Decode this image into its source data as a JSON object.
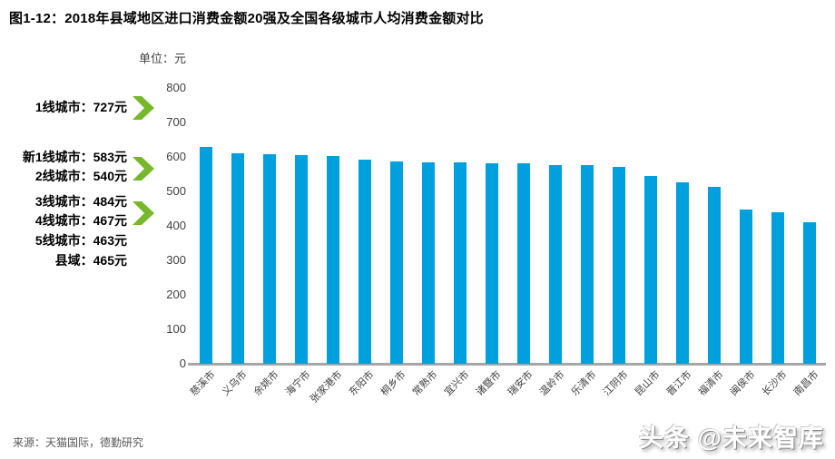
{
  "title": "图1-12：2018年县域地区进口消费金额20强及全国各级城市人均消费金额对比",
  "unit_label": "单位：元",
  "annotations": [
    "1线城市：727元",
    "新1线城市：583元",
    "2线城市：540元",
    "3线城市：484元",
    "4线城市：467元",
    "5线城市：463元",
    "县域：465元"
  ],
  "source": "来源：天猫国际，德勤研究",
  "watermark": "头条 @未来智库",
  "colors": {
    "bar": "#00a0de",
    "arrow_green": "#76b82a",
    "axis": "#a6a6a6"
  },
  "chart_data": {
    "type": "bar",
    "title": "2018年县域地区进口消费金额20强及全国各级城市人均消费金额对比",
    "unit": "元",
    "categories": [
      "慈溪市",
      "义乌市",
      "余姚市",
      "海宁市",
      "张家港市",
      "东阳市",
      "桐乡市",
      "常熟市",
      "宜兴市",
      "诸暨市",
      "瑞安市",
      "温岭市",
      "乐清市",
      "江阴市",
      "昆山市",
      "晋江市",
      "福清市",
      "闽侯市",
      "长沙市",
      "南昌市"
    ],
    "values": [
      628,
      610,
      607,
      604,
      602,
      593,
      588,
      585,
      583,
      582,
      581,
      576,
      577,
      571,
      546,
      526,
      512,
      448,
      440,
      410
    ],
    "ylim": [
      0,
      800
    ],
    "yticks": [
      0,
      100,
      200,
      300,
      400,
      500,
      600,
      700,
      800
    ],
    "grid": false,
    "legend": false,
    "city_tier_averages": [
      {
        "label": "1线城市",
        "value": 727
      },
      {
        "label": "新1线城市",
        "value": 583
      },
      {
        "label": "2线城市",
        "value": 540
      },
      {
        "label": "3线城市",
        "value": 484
      },
      {
        "label": "4线城市",
        "value": 467
      },
      {
        "label": "5线城市",
        "value": 463
      },
      {
        "label": "县域",
        "value": 465
      }
    ]
  }
}
